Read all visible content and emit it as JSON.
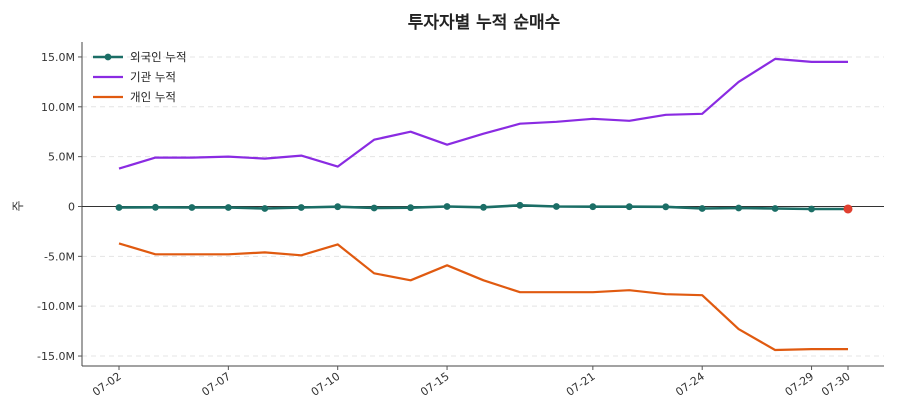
{
  "chart_data": {
    "type": "line",
    "title": "투자자별 누적 순매수",
    "ylabel": "주",
    "xlabel": "",
    "ylim": [
      -16000000,
      16500000
    ],
    "yticks": [
      15000000,
      10000000,
      5000000,
      0,
      -5000000,
      -10000000,
      -15000000
    ],
    "ytick_labels": [
      "15.0M",
      "10.0M",
      "5.0M",
      "0",
      "-5.0M",
      "-10.0M",
      "-15.0M"
    ],
    "x": [
      "07-02",
      "07-03",
      "07-04",
      "07-07",
      "07-08",
      "07-09",
      "07-10",
      "07-11",
      "07-14",
      "07-15",
      "07-16",
      "07-17",
      "07-18",
      "07-21",
      "07-22",
      "07-23",
      "07-24",
      "07-25",
      "07-28",
      "07-29",
      "07-30"
    ],
    "xtick_labels": [
      "07-02",
      "07-07",
      "07-10",
      "07-15",
      "07-21",
      "07-24",
      "07-29",
      "07-30"
    ],
    "grid": "y-dashed",
    "legend": "top-left",
    "zero_line": true,
    "series": [
      {
        "name": "외국인 누적",
        "color": "#1b6e66",
        "markers": true,
        "values": [
          -100000,
          -80000,
          -100000,
          -100000,
          -200000,
          -100000,
          -20000,
          -150000,
          -120000,
          0,
          -80000,
          120000,
          0,
          -20000,
          -20000,
          -30000,
          -200000,
          -150000,
          -200000,
          -250000,
          -250000
        ]
      },
      {
        "name": "기관 누적",
        "color": "#8a2be2",
        "markers": false,
        "values": [
          3800000,
          4900000,
          4900000,
          5000000,
          4800000,
          5100000,
          4000000,
          6700000,
          7500000,
          6200000,
          7300000,
          8300000,
          8500000,
          8800000,
          8600000,
          9200000,
          9300000,
          12500000,
          14800000,
          14500000,
          14500000
        ]
      },
      {
        "name": "개인 누적",
        "color": "#e05a10",
        "markers": false,
        "values": [
          -3700000,
          -4800000,
          -4800000,
          -4800000,
          -4600000,
          -4900000,
          -3800000,
          -6700000,
          -7400000,
          -5900000,
          -7400000,
          -8600000,
          -8600000,
          -8600000,
          -8400000,
          -8800000,
          -8900000,
          -12300000,
          -14400000,
          -14300000,
          -14300000
        ]
      }
    ],
    "last_point_highlight": {
      "series": "외국인 누적",
      "color": "#e04030"
    }
  }
}
